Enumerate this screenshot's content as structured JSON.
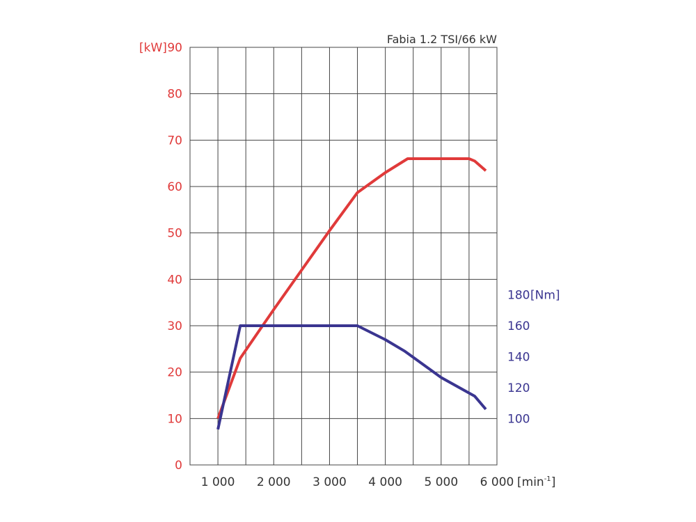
{
  "chart_data": {
    "type": "line",
    "title": "Fabia 1.2 TSI/66 kW",
    "x_unit_label": "[min",
    "x_unit_sup": "-1",
    "x_unit_close": "]",
    "x_ticks": [
      1000,
      2000,
      3000,
      4000,
      5000,
      6000
    ],
    "x_tick_labels": [
      "1 000",
      "2 000",
      "3 000",
      "4 000",
      "5 000",
      "6 000"
    ],
    "xlim": [
      500,
      6000
    ],
    "x_grid_step": 500,
    "y_left": {
      "unit_label": "[kW]",
      "ylim": [
        0,
        90
      ],
      "ticks": [
        0,
        10,
        20,
        30,
        40,
        50,
        60,
        70,
        80,
        90
      ],
      "color": "#e03a3a"
    },
    "y_right": {
      "unit_label": "[Nm]",
      "ticks": [
        100,
        120,
        140,
        160,
        180
      ],
      "tick_labels": [
        "100",
        "120",
        "140",
        "160",
        "180"
      ],
      "ylim": [
        70,
        340
      ],
      "color": "#3a3590"
    },
    "grid": true,
    "series": [
      {
        "axis": "left",
        "color": "#e03a3a",
        "points": [
          [
            1000,
            10
          ],
          [
            1400,
            23
          ],
          [
            2000,
            33.5
          ],
          [
            2500,
            42
          ],
          [
            3000,
            50.5
          ],
          [
            3500,
            58.7
          ],
          [
            4000,
            63
          ],
          [
            4400,
            66
          ],
          [
            5000,
            66
          ],
          [
            5500,
            66
          ],
          [
            5600,
            65.5
          ],
          [
            5800,
            63.4
          ]
        ]
      },
      {
        "axis": "right",
        "color": "#3a3590",
        "points": [
          [
            1000,
            93
          ],
          [
            1400,
            160
          ],
          [
            2000,
            160
          ],
          [
            3000,
            160
          ],
          [
            3500,
            160
          ],
          [
            4000,
            151
          ],
          [
            4350,
            143.5
          ],
          [
            5000,
            126.5
          ],
          [
            5600,
            114.5
          ],
          [
            5800,
            106
          ]
        ]
      }
    ]
  }
}
